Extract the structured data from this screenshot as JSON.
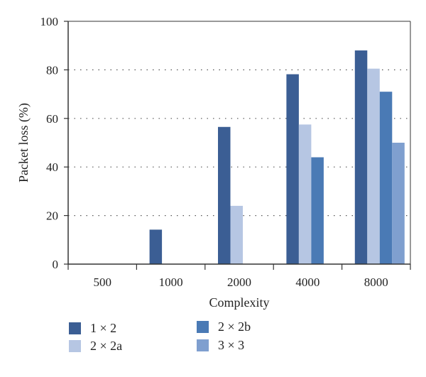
{
  "chart_data": {
    "type": "bar",
    "title": "",
    "xlabel": "Complexity",
    "ylabel": "Packet loss (%)",
    "categories": [
      "500",
      "1000",
      "2000",
      "4000",
      "8000"
    ],
    "ylim": [
      0,
      100
    ],
    "yticks": [
      0,
      20,
      40,
      60,
      80,
      100
    ],
    "grid": "horizontal dotted",
    "legend_position": "bottom",
    "series": [
      {
        "name": "1 × 2",
        "color": "#3b5e94",
        "values": [
          0,
          14.2,
          56.5,
          78.2,
          88.0
        ]
      },
      {
        "name": "2 × 2a",
        "color": "#b6c6e3",
        "values": [
          0,
          0,
          24.0,
          57.5,
          80.5
        ]
      },
      {
        "name": "2 × 2b",
        "color": "#4a7ab5",
        "values": [
          0,
          0,
          0,
          44.0,
          71.0
        ]
      },
      {
        "name": "3 × 3",
        "color": "#7f9fcf",
        "values": [
          0,
          0,
          0,
          0,
          50.0
        ]
      }
    ]
  }
}
